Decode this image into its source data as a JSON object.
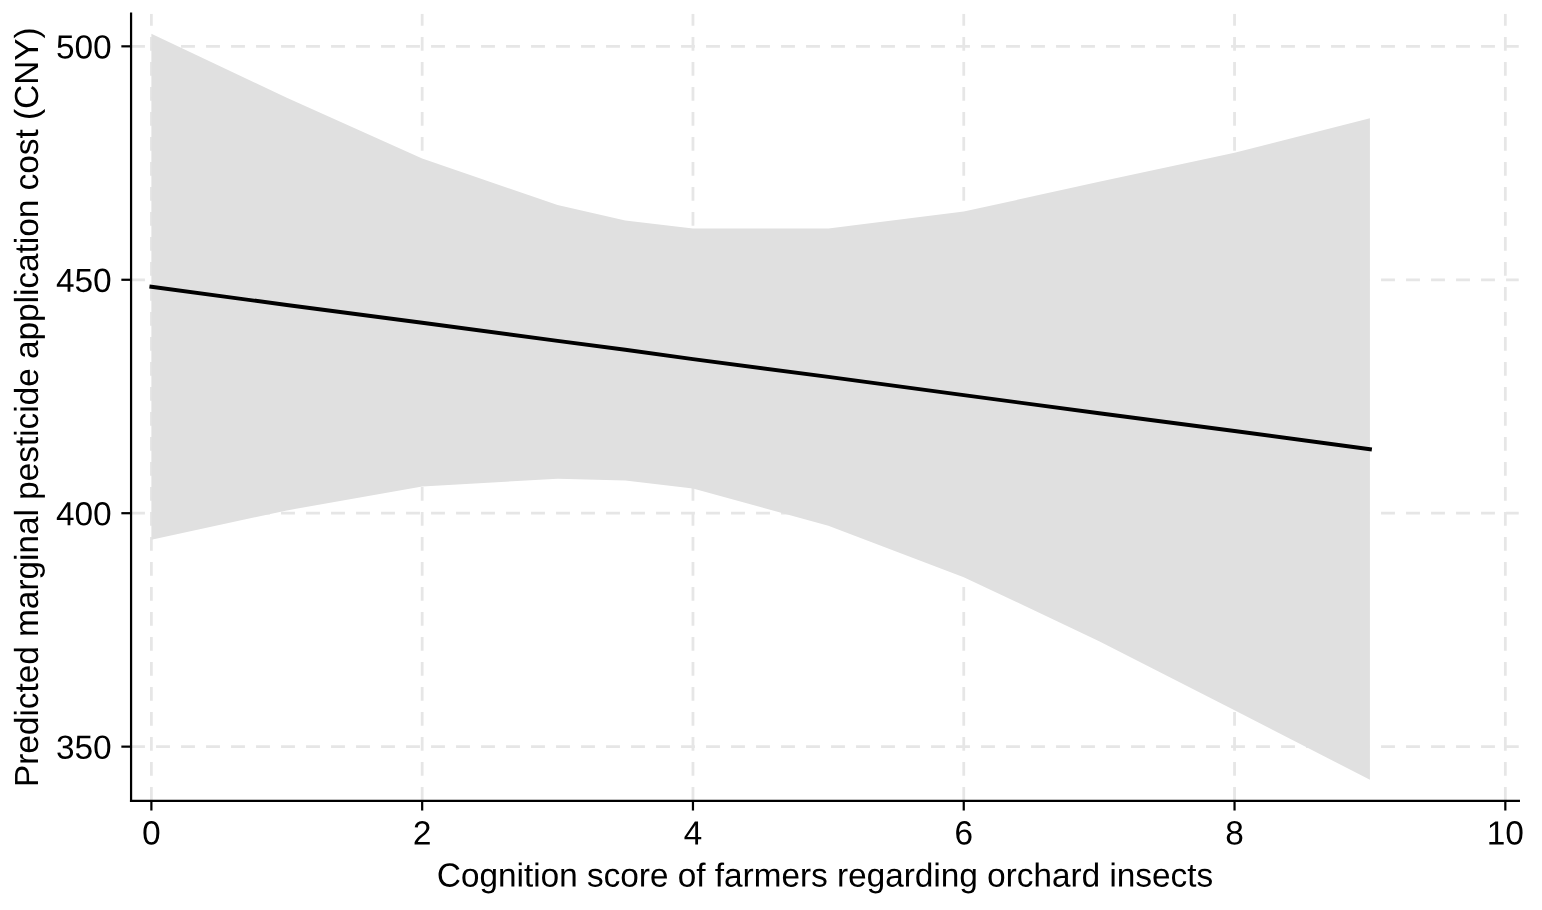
{
  "chart_data": {
    "type": "line",
    "xlabel": "Cognition score of farmers regarding orchard insects",
    "ylabel": "Predicted marginal pesticide application cost (CNY)",
    "series": [
      {
        "color": "#000000",
        "x": [
          0,
          1,
          2,
          3,
          3.5,
          4,
          5,
          6,
          7,
          8,
          9
        ],
        "values": [
          448.5,
          444.6,
          440.8,
          436.9,
          435.0,
          433.0,
          429.2,
          425.3,
          421.4,
          417.6,
          413.7
        ],
        "lower": [
          394.3,
          400.6,
          405.7,
          407.4,
          407.0,
          405.3,
          397.3,
          386.3,
          372.6,
          357.8,
          342.9
        ],
        "upper": [
          502.7,
          489,
          476,
          466,
          462.7,
          461,
          461,
          464.6,
          471,
          477.2,
          484.6
        ]
      }
    ],
    "xlim": [
      -0.15,
      10.1
    ],
    "ylim": [
      338.4,
      507
    ],
    "xticks": [
      0,
      2,
      4,
      6,
      8,
      10
    ],
    "yticks": [
      350,
      400,
      450,
      500
    ],
    "grid": true,
    "line_style": "solid",
    "marker": "none"
  }
}
